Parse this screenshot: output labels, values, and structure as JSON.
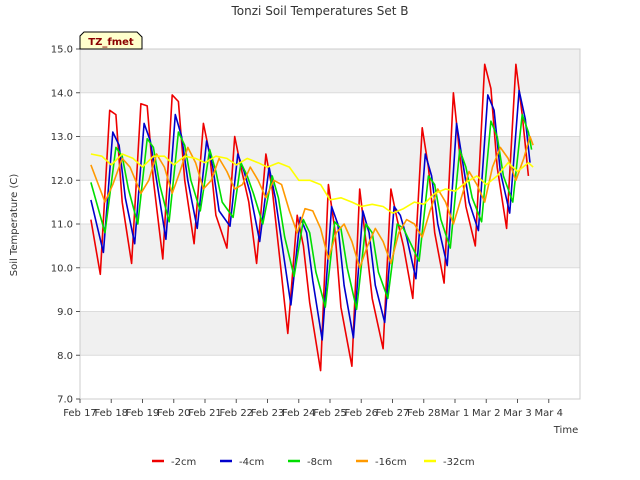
{
  "chart_data": {
    "type": "line",
    "title": "Tonzi Soil Temperatures Set B",
    "xlabel": "Time",
    "ylabel": "Soil Temperature (C)",
    "site_tag": "TZ_fmet",
    "xlim": [
      0,
      16
    ],
    "ylim": [
      7.0,
      15.0
    ],
    "x_ticks": [
      {
        "x": 0,
        "label": "Feb 17"
      },
      {
        "x": 1,
        "label": "Feb 18"
      },
      {
        "x": 2,
        "label": "Feb 19"
      },
      {
        "x": 3,
        "label": "Feb 20"
      },
      {
        "x": 4,
        "label": "Feb 21"
      },
      {
        "x": 5,
        "label": "Feb 22"
      },
      {
        "x": 6,
        "label": "Feb 23"
      },
      {
        "x": 7,
        "label": "Feb 24"
      },
      {
        "x": 8,
        "label": "Feb 25"
      },
      {
        "x": 9,
        "label": "Feb 26"
      },
      {
        "x": 10,
        "label": "Feb 27"
      },
      {
        "x": 11,
        "label": "Feb 28"
      },
      {
        "x": 12,
        "label": "Mar 1"
      },
      {
        "x": 13,
        "label": "Mar 2"
      },
      {
        "x": 14,
        "label": "Mar 3"
      },
      {
        "x": 15,
        "label": "Mar 4"
      }
    ],
    "y_ticks": [
      {
        "y": 7.0,
        "label": "7.0"
      },
      {
        "y": 8.0,
        "label": "8.0"
      },
      {
        "y": 9.0,
        "label": "9.0"
      },
      {
        "y": 10.0,
        "label": "10.0"
      },
      {
        "y": 11.0,
        "label": "11.0"
      },
      {
        "y": 12.0,
        "label": "12.0"
      },
      {
        "y": 13.0,
        "label": "13.0"
      },
      {
        "y": 14.0,
        "label": "14.0"
      },
      {
        "y": 15.0,
        "label": "15.0"
      }
    ],
    "grid": true,
    "legend_position": "bottom",
    "series": [
      {
        "name": "-2cm",
        "color": "#ee0000",
        "points": [
          [
            0.35,
            11.1
          ],
          [
            0.65,
            9.85
          ],
          [
            0.95,
            13.6
          ],
          [
            1.15,
            13.5
          ],
          [
            1.35,
            11.5
          ],
          [
            1.65,
            10.1
          ],
          [
            1.95,
            13.75
          ],
          [
            2.15,
            13.7
          ],
          [
            2.35,
            12.0
          ],
          [
            2.65,
            10.2
          ],
          [
            2.95,
            13.95
          ],
          [
            3.15,
            13.8
          ],
          [
            3.35,
            12.0
          ],
          [
            3.65,
            10.55
          ],
          [
            3.95,
            13.3
          ],
          [
            4.15,
            12.6
          ],
          [
            4.35,
            11.2
          ],
          [
            4.7,
            10.45
          ],
          [
            4.95,
            13.0
          ],
          [
            5.15,
            12.3
          ],
          [
            5.4,
            11.5
          ],
          [
            5.65,
            10.1
          ],
          [
            5.95,
            12.6
          ],
          [
            6.15,
            11.8
          ],
          [
            6.35,
            10.5
          ],
          [
            6.65,
            8.5
          ],
          [
            6.95,
            11.2
          ],
          [
            7.15,
            10.5
          ],
          [
            7.35,
            9.2
          ],
          [
            7.7,
            7.65
          ],
          [
            7.95,
            11.9
          ],
          [
            8.15,
            10.9
          ],
          [
            8.35,
            9.1
          ],
          [
            8.7,
            7.75
          ],
          [
            8.95,
            11.8
          ],
          [
            9.15,
            10.6
          ],
          [
            9.35,
            9.3
          ],
          [
            9.7,
            8.15
          ],
          [
            9.95,
            11.8
          ],
          [
            10.15,
            11.1
          ],
          [
            10.35,
            10.5
          ],
          [
            10.65,
            9.3
          ],
          [
            10.95,
            13.2
          ],
          [
            11.15,
            12.3
          ],
          [
            11.35,
            10.8
          ],
          [
            11.65,
            9.65
          ],
          [
            11.95,
            14.0
          ],
          [
            12.15,
            12.6
          ],
          [
            12.35,
            11.4
          ],
          [
            12.65,
            10.5
          ],
          [
            12.95,
            14.65
          ],
          [
            13.15,
            14.1
          ],
          [
            13.35,
            12.3
          ],
          [
            13.65,
            10.9
          ],
          [
            13.95,
            14.65
          ],
          [
            14.15,
            13.5
          ],
          [
            14.35,
            12.1
          ]
        ]
      },
      {
        "name": "-4cm",
        "color": "#0000cc",
        "points": [
          [
            0.35,
            11.55
          ],
          [
            0.75,
            10.35
          ],
          [
            1.05,
            13.1
          ],
          [
            1.25,
            12.8
          ],
          [
            1.45,
            11.6
          ],
          [
            1.75,
            10.55
          ],
          [
            2.05,
            13.3
          ],
          [
            2.25,
            12.9
          ],
          [
            2.45,
            12.0
          ],
          [
            2.75,
            10.65
          ],
          [
            3.05,
            13.5
          ],
          [
            3.25,
            13.0
          ],
          [
            3.45,
            12.0
          ],
          [
            3.75,
            10.9
          ],
          [
            4.05,
            12.9
          ],
          [
            4.25,
            12.3
          ],
          [
            4.45,
            11.3
          ],
          [
            4.8,
            10.95
          ],
          [
            5.05,
            12.6
          ],
          [
            5.25,
            12.2
          ],
          [
            5.45,
            11.7
          ],
          [
            5.75,
            10.6
          ],
          [
            6.05,
            12.3
          ],
          [
            6.25,
            11.6
          ],
          [
            6.45,
            10.6
          ],
          [
            6.75,
            9.15
          ],
          [
            7.05,
            11.15
          ],
          [
            7.25,
            10.8
          ],
          [
            7.45,
            9.7
          ],
          [
            7.75,
            8.35
          ],
          [
            8.05,
            11.4
          ],
          [
            8.25,
            11.0
          ],
          [
            8.45,
            9.6
          ],
          [
            8.75,
            8.4
          ],
          [
            9.05,
            11.3
          ],
          [
            9.25,
            10.8
          ],
          [
            9.45,
            9.6
          ],
          [
            9.75,
            8.75
          ],
          [
            10.05,
            11.4
          ],
          [
            10.25,
            11.2
          ],
          [
            10.45,
            10.7
          ],
          [
            10.75,
            9.75
          ],
          [
            11.05,
            12.6
          ],
          [
            11.25,
            12.1
          ],
          [
            11.45,
            11.0
          ],
          [
            11.75,
            10.05
          ],
          [
            12.05,
            13.3
          ],
          [
            12.25,
            12.4
          ],
          [
            12.45,
            11.5
          ],
          [
            12.75,
            10.85
          ],
          [
            13.05,
            13.95
          ],
          [
            13.25,
            13.6
          ],
          [
            13.45,
            12.2
          ],
          [
            13.75,
            11.25
          ],
          [
            14.05,
            14.05
          ],
          [
            14.25,
            13.4
          ],
          [
            14.4,
            12.4
          ]
        ]
      },
      {
        "name": "-8cm",
        "color": "#00dd00",
        "points": [
          [
            0.35,
            11.95
          ],
          [
            0.8,
            10.8
          ],
          [
            1.15,
            12.75
          ],
          [
            1.35,
            12.55
          ],
          [
            1.55,
            11.8
          ],
          [
            1.85,
            11.0
          ],
          [
            2.15,
            12.95
          ],
          [
            2.35,
            12.75
          ],
          [
            2.55,
            11.9
          ],
          [
            2.85,
            11.05
          ],
          [
            3.15,
            13.1
          ],
          [
            3.35,
            12.8
          ],
          [
            3.55,
            12.0
          ],
          [
            3.85,
            11.3
          ],
          [
            4.15,
            12.7
          ],
          [
            4.35,
            12.2
          ],
          [
            4.55,
            11.5
          ],
          [
            4.9,
            11.15
          ],
          [
            5.15,
            12.4
          ],
          [
            5.35,
            12.1
          ],
          [
            5.55,
            11.7
          ],
          [
            5.85,
            11.0
          ],
          [
            6.15,
            12.1
          ],
          [
            6.35,
            11.6
          ],
          [
            6.55,
            10.7
          ],
          [
            6.85,
            9.8
          ],
          [
            7.15,
            11.1
          ],
          [
            7.35,
            10.8
          ],
          [
            7.55,
            9.9
          ],
          [
            7.85,
            9.1
          ],
          [
            8.15,
            11.05
          ],
          [
            8.35,
            10.9
          ],
          [
            8.55,
            10.0
          ],
          [
            8.85,
            9.05
          ],
          [
            9.15,
            11.0
          ],
          [
            9.35,
            10.8
          ],
          [
            9.55,
            9.9
          ],
          [
            9.85,
            9.3
          ],
          [
            10.15,
            11.0
          ],
          [
            10.35,
            10.9
          ],
          [
            10.55,
            10.6
          ],
          [
            10.85,
            10.15
          ],
          [
            11.15,
            12.1
          ],
          [
            11.35,
            11.9
          ],
          [
            11.55,
            11.1
          ],
          [
            11.85,
            10.45
          ],
          [
            12.15,
            12.7
          ],
          [
            12.35,
            12.3
          ],
          [
            12.55,
            11.6
          ],
          [
            12.85,
            11.05
          ],
          [
            13.15,
            13.35
          ],
          [
            13.35,
            13.0
          ],
          [
            13.55,
            12.1
          ],
          [
            13.85,
            11.5
          ],
          [
            14.15,
            13.5
          ],
          [
            14.35,
            13.1
          ],
          [
            14.45,
            12.7
          ]
        ]
      },
      {
        "name": "-16cm",
        "color": "#ff9900",
        "points": [
          [
            0.35,
            12.35
          ],
          [
            0.8,
            11.5
          ],
          [
            1.05,
            11.9
          ],
          [
            1.35,
            12.5
          ],
          [
            1.6,
            12.3
          ],
          [
            1.95,
            11.7
          ],
          [
            2.2,
            12.0
          ],
          [
            2.45,
            12.6
          ],
          [
            2.7,
            12.3
          ],
          [
            2.95,
            11.7
          ],
          [
            3.2,
            12.2
          ],
          [
            3.45,
            12.75
          ],
          [
            3.7,
            12.4
          ],
          [
            3.95,
            11.8
          ],
          [
            4.2,
            12.0
          ],
          [
            4.45,
            12.5
          ],
          [
            4.7,
            12.2
          ],
          [
            4.95,
            11.8
          ],
          [
            5.2,
            11.9
          ],
          [
            5.45,
            12.3
          ],
          [
            5.7,
            12.0
          ],
          [
            5.95,
            11.6
          ],
          [
            6.2,
            12.0
          ],
          [
            6.45,
            11.9
          ],
          [
            6.7,
            11.3
          ],
          [
            6.95,
            10.8
          ],
          [
            7.2,
            11.35
          ],
          [
            7.45,
            11.3
          ],
          [
            7.7,
            10.9
          ],
          [
            7.95,
            10.2
          ],
          [
            8.2,
            10.8
          ],
          [
            8.45,
            11.0
          ],
          [
            8.7,
            10.6
          ],
          [
            8.95,
            10.0
          ],
          [
            9.2,
            10.5
          ],
          [
            9.45,
            10.9
          ],
          [
            9.7,
            10.6
          ],
          [
            9.95,
            10.1
          ],
          [
            10.2,
            10.8
          ],
          [
            10.45,
            11.1
          ],
          [
            10.7,
            11.0
          ],
          [
            10.95,
            10.7
          ],
          [
            11.2,
            11.3
          ],
          [
            11.45,
            11.8
          ],
          [
            11.7,
            11.5
          ],
          [
            11.95,
            11.0
          ],
          [
            12.2,
            11.6
          ],
          [
            12.45,
            12.2
          ],
          [
            12.7,
            11.9
          ],
          [
            12.95,
            11.5
          ],
          [
            13.2,
            12.3
          ],
          [
            13.45,
            12.75
          ],
          [
            13.7,
            12.5
          ],
          [
            13.95,
            12.0
          ],
          [
            14.2,
            12.5
          ],
          [
            14.4,
            13.0
          ],
          [
            14.5,
            12.8
          ]
        ]
      },
      {
        "name": "-32cm",
        "color": "#ffff00",
        "points": [
          [
            0.35,
            12.6
          ],
          [
            0.7,
            12.55
          ],
          [
            1.0,
            12.35
          ],
          [
            1.35,
            12.6
          ],
          [
            1.7,
            12.5
          ],
          [
            2.0,
            12.3
          ],
          [
            2.35,
            12.55
          ],
          [
            2.7,
            12.55
          ],
          [
            3.0,
            12.35
          ],
          [
            3.35,
            12.55
          ],
          [
            3.7,
            12.5
          ],
          [
            4.0,
            12.4
          ],
          [
            4.35,
            12.55
          ],
          [
            4.7,
            12.5
          ],
          [
            5.0,
            12.35
          ],
          [
            5.35,
            12.5
          ],
          [
            5.7,
            12.4
          ],
          [
            6.0,
            12.3
          ],
          [
            6.35,
            12.4
          ],
          [
            6.7,
            12.3
          ],
          [
            7.0,
            12.0
          ],
          [
            7.35,
            12.0
          ],
          [
            7.7,
            11.9
          ],
          [
            8.0,
            11.55
          ],
          [
            8.35,
            11.6
          ],
          [
            8.7,
            11.5
          ],
          [
            9.0,
            11.4
          ],
          [
            9.35,
            11.45
          ],
          [
            9.7,
            11.4
          ],
          [
            10.0,
            11.25
          ],
          [
            10.35,
            11.35
          ],
          [
            10.7,
            11.5
          ],
          [
            11.0,
            11.45
          ],
          [
            11.35,
            11.7
          ],
          [
            11.7,
            11.8
          ],
          [
            12.0,
            11.75
          ],
          [
            12.35,
            11.95
          ],
          [
            12.7,
            12.1
          ],
          [
            13.0,
            11.9
          ],
          [
            13.35,
            12.1
          ],
          [
            13.7,
            12.4
          ],
          [
            14.0,
            12.2
          ],
          [
            14.35,
            12.4
          ],
          [
            14.5,
            12.3
          ]
        ]
      }
    ]
  }
}
